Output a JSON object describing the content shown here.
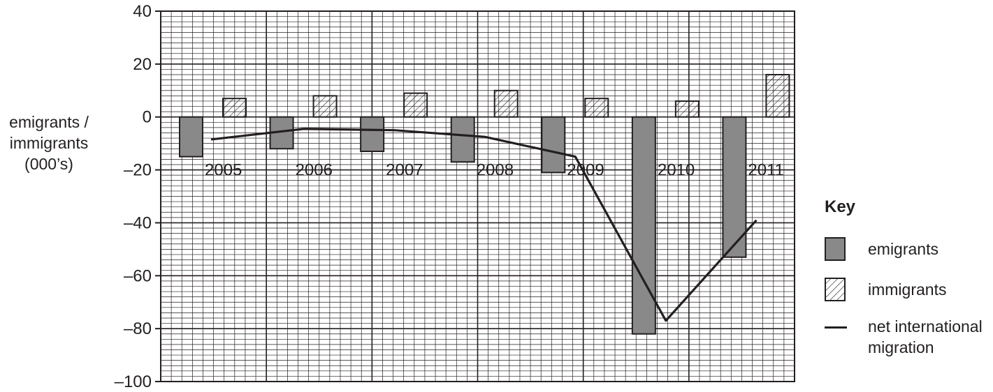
{
  "chart_data": {
    "type": "bar",
    "categories": [
      "2005",
      "2006",
      "2007",
      "2008",
      "2009",
      "2010",
      "2011"
    ],
    "series": [
      {
        "name": "emigrants",
        "type": "bar",
        "values": [
          -15,
          -12,
          -13,
          -17,
          -21,
          -82,
          -53
        ]
      },
      {
        "name": "immigrants",
        "type": "bar",
        "values": [
          7,
          8,
          9,
          10,
          7,
          6,
          16
        ]
      },
      {
        "name": "net international migration",
        "type": "line",
        "values": [
          -8.5,
          -4.5,
          -5,
          -7.5,
          -15,
          -77,
          -39
        ]
      }
    ],
    "ylabel": "emigrants / immigrants (000’s)",
    "ylim": [
      -100,
      40
    ],
    "yticks": [
      "40",
      "20",
      "0",
      "–20",
      "–40",
      "–60",
      "–80",
      "–100"
    ],
    "grid": true,
    "legend": {
      "title": "Key",
      "placement": "right",
      "items": [
        "emigrants",
        "immigrants",
        "net international migration"
      ]
    },
    "colors": {
      "emigrants": "#898989",
      "immigrants_hatch": "#231f20",
      "line": "#231f20",
      "grid": "#231f20"
    }
  }
}
